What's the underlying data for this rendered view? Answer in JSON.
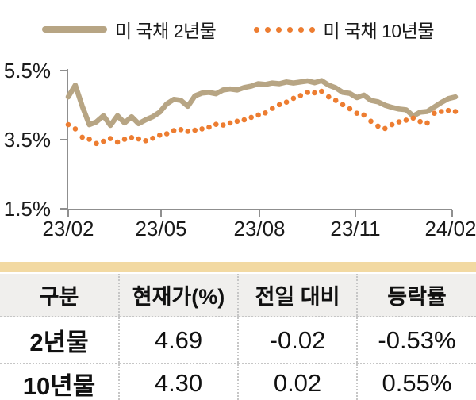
{
  "legend": {
    "item_2y": "미 국채 2년물",
    "item_10y": "미 국채 10년물"
  },
  "chart_data": {
    "type": "line",
    "x_ticks": [
      "23/02",
      "23/05",
      "23/08",
      "23/11",
      "24/02"
    ],
    "y_ticks": [
      "5.5%",
      "3.5%",
      "1.5%"
    ],
    "y_min": 1.5,
    "y_max": 5.5,
    "y_unit": "%",
    "grid": false,
    "legend_position": "top",
    "series": [
      {
        "name": "미 국채 2년물",
        "color": "#b7a584",
        "style": "solid",
        "values": [
          4.72,
          5.06,
          4.45,
          3.92,
          4.0,
          4.18,
          3.9,
          4.18,
          3.97,
          4.15,
          3.95,
          4.06,
          4.15,
          4.28,
          4.52,
          4.65,
          4.62,
          4.45,
          4.75,
          4.83,
          4.85,
          4.81,
          4.92,
          4.95,
          4.92,
          4.99,
          5.03,
          5.1,
          5.08,
          5.12,
          5.1,
          5.15,
          5.12,
          5.15,
          5.18,
          5.13,
          5.19,
          5.06,
          4.98,
          4.85,
          4.82,
          4.7,
          4.77,
          4.62,
          4.58,
          4.48,
          4.42,
          4.37,
          4.35,
          4.17,
          4.28,
          4.3,
          4.43,
          4.56,
          4.67,
          4.72
        ]
      },
      {
        "name": "미 국채 10년물",
        "color": "#ed7d31",
        "style": "dotted",
        "values": [
          3.92,
          3.8,
          3.56,
          3.5,
          3.38,
          3.44,
          3.52,
          3.42,
          3.5,
          3.55,
          3.51,
          3.46,
          3.53,
          3.62,
          3.66,
          3.75,
          3.78,
          3.73,
          3.76,
          3.8,
          3.85,
          3.93,
          3.91,
          3.97,
          4.02,
          4.06,
          4.13,
          4.2,
          4.26,
          4.39,
          4.5,
          4.57,
          4.68,
          4.76,
          4.85,
          4.84,
          4.88,
          4.72,
          4.62,
          4.5,
          4.38,
          4.25,
          4.2,
          4.02,
          3.88,
          3.81,
          3.92,
          4.0,
          4.05,
          4.11,
          4.01,
          3.97,
          4.25,
          4.3,
          4.33,
          4.3
        ]
      }
    ]
  },
  "table": {
    "accent_bar_color": "#f2d9a2",
    "headers": [
      "구분",
      "현재가(%)",
      "전일 대비",
      "등락률"
    ],
    "rows": [
      [
        "2년물",
        "4.69",
        "-0.02",
        "-0.53%"
      ],
      [
        "10년물",
        "4.30",
        "0.02",
        "0.55%"
      ]
    ]
  }
}
